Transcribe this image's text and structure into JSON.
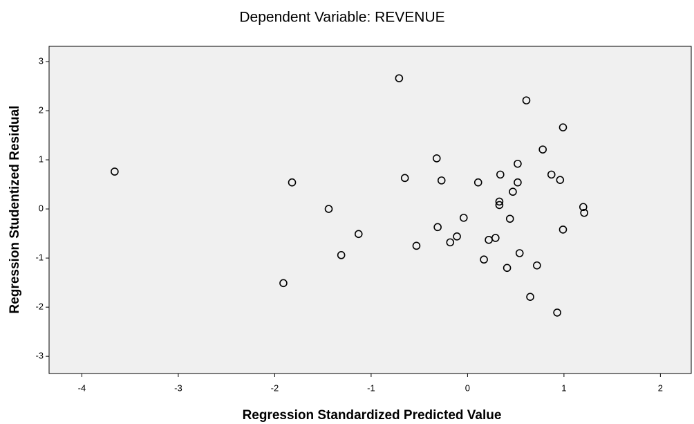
{
  "chart_data": {
    "type": "scatter",
    "title": "Dependent Variable: REVENUE",
    "x_label": "Regression Standardized Predicted Value",
    "y_label": "Regression Studentized Residual",
    "xlim": [
      -4.34,
      2.32
    ],
    "ylim": [
      -3.35,
      3.31
    ],
    "xticks": [
      -4,
      -3,
      -2,
      -1,
      0,
      1,
      2
    ],
    "yticks": [
      -3,
      -2,
      -1,
      0,
      1,
      2,
      3
    ],
    "grid": false,
    "series": [
      {
        "color": "#000000",
        "x": [
          -3.66,
          -1.82,
          -1.44,
          -1.13,
          -1.31,
          -1.91,
          -0.71,
          -0.65,
          -0.32,
          -0.27,
          -0.53,
          -0.31,
          -0.04,
          -0.11,
          -0.18,
          0.11,
          0.17,
          0.22,
          0.29,
          0.34,
          0.33,
          0.33,
          0.41,
          0.44,
          0.47,
          0.52,
          0.52,
          0.54,
          0.61,
          0.65,
          0.72,
          0.78,
          0.87,
          0.93,
          0.96,
          0.99,
          0.99,
          1.2,
          1.21
        ],
        "values": [
          0.76,
          0.54,
          0.0,
          -0.51,
          -0.94,
          -1.51,
          2.66,
          0.63,
          1.03,
          0.58,
          -0.75,
          -0.37,
          -0.18,
          -0.56,
          -0.68,
          0.54,
          -1.03,
          -0.63,
          -0.59,
          0.7,
          0.15,
          0.08,
          -1.2,
          -0.2,
          0.35,
          0.92,
          0.54,
          -0.9,
          2.21,
          -1.79,
          -1.15,
          1.21,
          0.7,
          -2.11,
          0.59,
          -0.42,
          1.66,
          0.04,
          -0.08
        ]
      }
    ]
  }
}
